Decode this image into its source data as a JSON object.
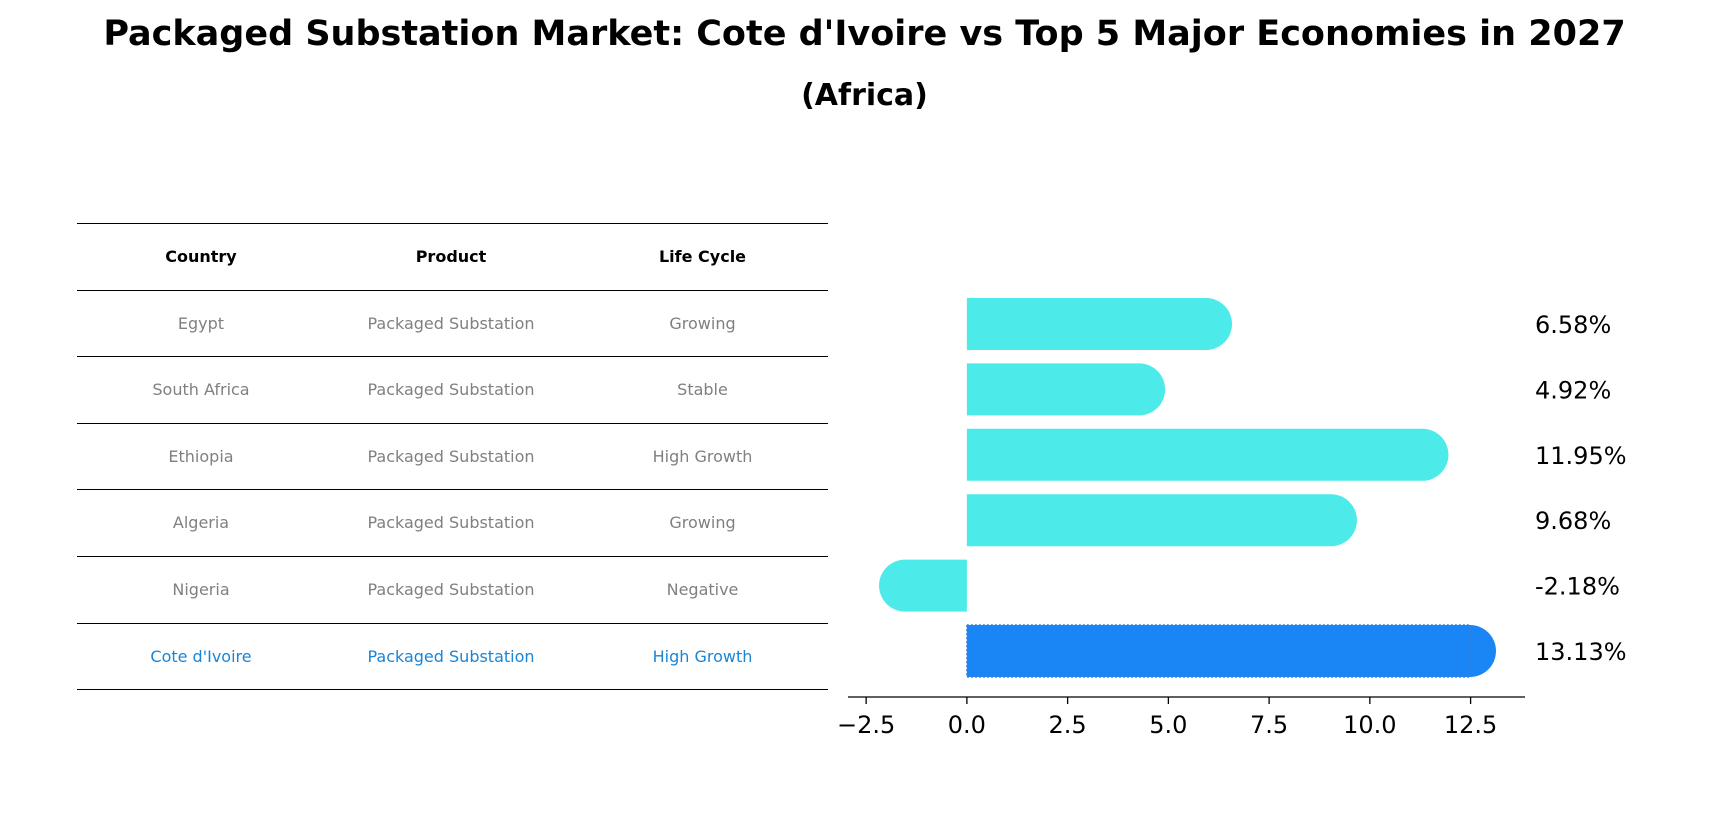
{
  "title": "Packaged Substation Market: Cote d'Ivoire vs Top 5 Major Economies in 2027",
  "subtitle": "(Africa)",
  "table": {
    "headers": [
      "Country",
      "Product",
      "Life Cycle"
    ],
    "rows": [
      [
        "Egypt",
        "Packaged Substation",
        "Growing"
      ],
      [
        "South Africa",
        "Packaged Substation",
        "Stable"
      ],
      [
        "Ethiopia",
        "Packaged Substation",
        "High Growth"
      ],
      [
        "Algeria",
        "Packaged Substation",
        "Growing"
      ],
      [
        "Nigeria",
        "Packaged Substation",
        "Negative"
      ],
      [
        "Cote d'Ivoire",
        "Packaged Substation",
        "High Growth"
      ]
    ],
    "highlight_row": 5,
    "colors": {
      "normal_text": "#808080",
      "highlight_text": "#1a85d6"
    }
  },
  "chart_data": {
    "type": "bar",
    "orientation": "horizontal",
    "categories": [
      "Egypt",
      "South Africa",
      "Ethiopia",
      "Algeria",
      "Nigeria",
      "Cote d'Ivoire"
    ],
    "values": [
      6.58,
      4.92,
      11.95,
      9.68,
      -2.18,
      13.13
    ],
    "value_labels": [
      "6.58%",
      "4.92%",
      "11.95%",
      "9.68%",
      "-2.18%",
      "13.13%"
    ],
    "xlim": [
      -2.95,
      13.85
    ],
    "xticks": [
      -2.5,
      0.0,
      2.5,
      5.0,
      7.5,
      10.0,
      12.5
    ],
    "xtick_labels": [
      "−2.5",
      "0.0",
      "2.5",
      "5.0",
      "7.5",
      "10.0",
      "12.5"
    ],
    "colors": {
      "default": "#4deaea",
      "highlight": "#1a85f5"
    },
    "highlight_index": 5
  }
}
